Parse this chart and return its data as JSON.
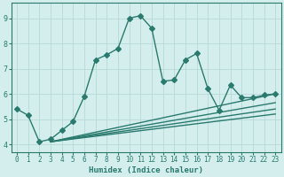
{
  "title": "",
  "xlabel": "Humidex (Indice chaleur)",
  "ylabel": "",
  "bg_color": "#d4eeee",
  "grid_color": "#b8d8d8",
  "line_color": "#2a7a6e",
  "xlim": [
    -0.5,
    23.5
  ],
  "ylim": [
    3.7,
    9.6
  ],
  "xticks": [
    0,
    1,
    2,
    3,
    4,
    5,
    6,
    7,
    8,
    9,
    10,
    11,
    12,
    13,
    14,
    15,
    16,
    17,
    18,
    19,
    20,
    21,
    22,
    23
  ],
  "yticks": [
    4,
    5,
    6,
    7,
    8,
    9
  ],
  "lines": [
    {
      "x": [
        0,
        1,
        2,
        3,
        4,
        5,
        6,
        7,
        8,
        9,
        10,
        11,
        12,
        13,
        14,
        15,
        16,
        17,
        18,
        19,
        20,
        21,
        22,
        23
      ],
      "y": [
        5.4,
        5.15,
        4.1,
        4.2,
        4.55,
        4.9,
        5.9,
        7.35,
        7.55,
        7.8,
        9.0,
        9.1,
        8.6,
        6.5,
        6.55,
        7.35,
        7.6,
        6.2,
        5.35,
        6.35,
        5.85,
        5.85,
        5.95,
        6.0
      ],
      "marker": true
    },
    {
      "x": [
        3,
        23
      ],
      "y": [
        4.1,
        6.0
      ],
      "marker": false
    },
    {
      "x": [
        3,
        23
      ],
      "y": [
        4.1,
        5.65
      ],
      "marker": false
    },
    {
      "x": [
        3,
        23
      ],
      "y": [
        4.1,
        5.4
      ],
      "marker": false
    },
    {
      "x": [
        3,
        23
      ],
      "y": [
        4.1,
        5.2
      ],
      "marker": false
    }
  ],
  "marker_size": 3,
  "linewidth": 1.0
}
